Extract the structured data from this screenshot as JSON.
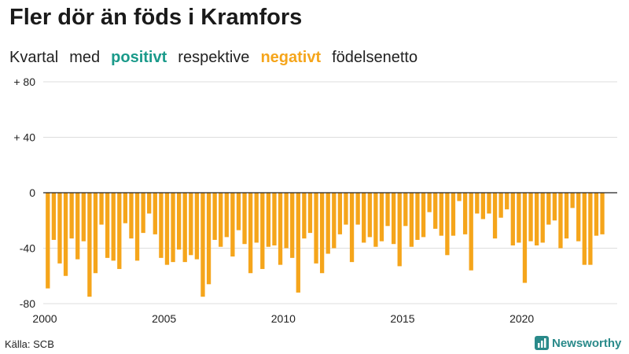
{
  "title": "Fler dör än föds i Kramfors",
  "subtitle": {
    "words": [
      "Kvartal",
      "med",
      "positivt",
      "respektive",
      "negativt",
      "födelsenetto"
    ]
  },
  "source": "Källa: SCB",
  "brand": "Newsworthy",
  "colors": {
    "positive": "#1a9a8a",
    "negative": "#f5a51b",
    "brand": "#2a8a8a",
    "grid": "#dddddd",
    "zero_line": "#222222"
  },
  "icons": {
    "brand": "bar-chart-logo-icon"
  },
  "chart_data": {
    "type": "bar",
    "title": "Fler dör än föds i Kramfors",
    "subtitle": "Kvartal med positivt respektive negativt födelsenetto",
    "xlabel": "",
    "ylabel": "",
    "x_tick_labels": [
      "2000",
      "2005",
      "2010",
      "2015",
      "2020"
    ],
    "y_tick_labels": [
      "+ 80",
      "+ 40",
      "0",
      "-40",
      "-80"
    ],
    "y_ticks": [
      80,
      40,
      0,
      -40,
      -80
    ],
    "ylim": [
      -80,
      80
    ],
    "xlim_years": [
      2000,
      2024
    ],
    "grid": true,
    "legend": "inline in subtitle",
    "start_year": 2000,
    "values": [
      -69,
      -34,
      -51,
      -60,
      -33,
      -48,
      -35,
      -75,
      -58,
      -23,
      -47,
      -49,
      -55,
      -22,
      -33,
      -49,
      -29,
      -15,
      -30,
      -47,
      -52,
      -50,
      -41,
      -50,
      -45,
      -48,
      -75,
      -66,
      -34,
      -39,
      -32,
      -46,
      -27,
      -37,
      -58,
      -36,
      -55,
      -39,
      -38,
      -52,
      -40,
      -47,
      -72,
      -33,
      -29,
      -51,
      -58,
      -44,
      -40,
      -30,
      -23,
      -50,
      -23,
      -36,
      -32,
      -39,
      -35,
      -24,
      -37,
      -53,
      -24,
      -39,
      -34,
      -32,
      -14,
      -26,
      -31,
      -45,
      -31,
      -6,
      -30,
      -56,
      -15,
      -19,
      -15,
      -33,
      -18,
      -12,
      -38,
      -36,
      -65,
      -35,
      -38,
      -36,
      -23,
      -20,
      -40,
      -33,
      -11,
      -35,
      -52,
      -52,
      -31,
      -30
    ]
  }
}
